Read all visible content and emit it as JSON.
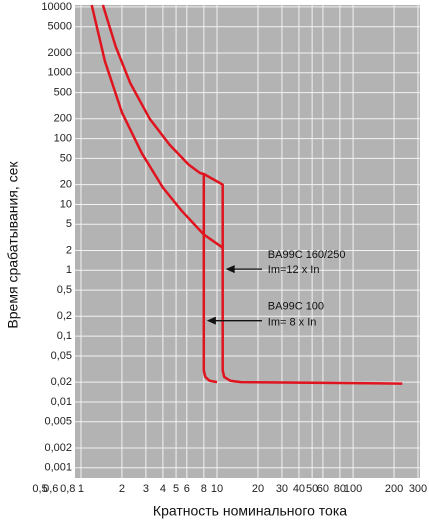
{
  "chart_data": {
    "type": "line",
    "xlabel": "Кратность номинального тока",
    "ylabel": "Время срабатывания, сек",
    "log_x": true,
    "log_y": true,
    "grid": true,
    "xlim": [
      0.5,
      300
    ],
    "ylim": [
      0.0007,
      10700
    ],
    "xticks": [
      {
        "value": 0.5,
        "label": "0,5"
      },
      {
        "value": 0.6,
        "label": "0,6"
      },
      {
        "value": 0.8,
        "label": "0,8"
      },
      1,
      2,
      3,
      4,
      5,
      6,
      8,
      10,
      20,
      30,
      40,
      50,
      60,
      80,
      100,
      200,
      300
    ],
    "yticks": [
      10000,
      5000,
      2000,
      1000,
      500,
      200,
      100,
      50,
      20,
      10,
      5,
      2,
      1,
      {
        "value": 0.5,
        "label": "0,5"
      },
      {
        "value": 0.2,
        "label": "0,2"
      },
      {
        "value": 0.1,
        "label": "0,1"
      },
      {
        "value": 0.05,
        "label": "0,05"
      },
      {
        "value": 0.02,
        "label": "0,02"
      },
      {
        "value": 0.01,
        "label": "0,01"
      },
      {
        "value": 0.005,
        "label": "0,005"
      },
      {
        "value": 0.002,
        "label": "0,002"
      },
      {
        "value": 0.001,
        "label": "0,001"
      }
    ],
    "series": [
      {
        "color": "#e0141e",
        "x": [
          1.45,
          1.8,
          2.3,
          3.2,
          4.5,
          6.2,
          7.5,
          8,
          11,
          11,
          11.3,
          12.5,
          15,
          230
        ],
        "values": [
          10700,
          2500,
          700,
          200,
          80,
          40,
          30,
          29,
          20,
          0.03,
          0.024,
          0.021,
          0.02,
          0.019
        ]
      },
      {
        "color": "#e0141e",
        "x": [
          1.2,
          1.5,
          2,
          2.8,
          4,
          5.5,
          8,
          11
        ],
        "values": [
          10700,
          1500,
          250,
          60,
          18,
          8,
          3.5,
          2.2
        ]
      },
      {
        "color": "#e0141e",
        "x": [
          8,
          8,
          8.2,
          8.8,
          10
        ],
        "values": [
          29,
          0.03,
          0.024,
          0.021,
          0.02
        ]
      }
    ],
    "annotations": [
      {
        "text": "BA99C  160/250",
        "x": 12,
        "y": 1.7
      },
      {
        "text": "Im=12 x In",
        "x": 12,
        "y": 1.0
      },
      {
        "text": "BA99C  100",
        "x": 12,
        "y": 0.28
      },
      {
        "text": "Im= 8 x In",
        "x": 12,
        "y": 0.16
      }
    ]
  }
}
